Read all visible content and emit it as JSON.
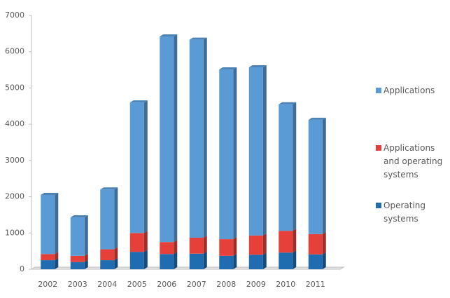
{
  "chart_data": {
    "type": "stacked_bar",
    "categories": [
      "2002",
      "2003",
      "2004",
      "2005",
      "2006",
      "2007",
      "2008",
      "2009",
      "2010",
      "2011"
    ],
    "series": [
      {
        "name": "Operating systems",
        "color": "#1f6db0",
        "values": [
          250,
          200,
          250,
          480,
          420,
          430,
          370,
          400,
          460,
          410
        ]
      },
      {
        "name": "Applications and operating systems",
        "color": "#e5413a",
        "values": [
          170,
          170,
          300,
          520,
          330,
          440,
          460,
          530,
          600,
          560
        ]
      },
      {
        "name": "Applications",
        "color": "#5a9bd5",
        "values": [
          1630,
          1060,
          1650,
          3600,
          5670,
          5460,
          4680,
          4640,
          3490,
          3150
        ]
      }
    ],
    "ylim": [
      0,
      7000
    ],
    "yticks": [
      0,
      1000,
      2000,
      3000,
      4000,
      5000,
      6000,
      7000
    ],
    "legend": "right"
  }
}
